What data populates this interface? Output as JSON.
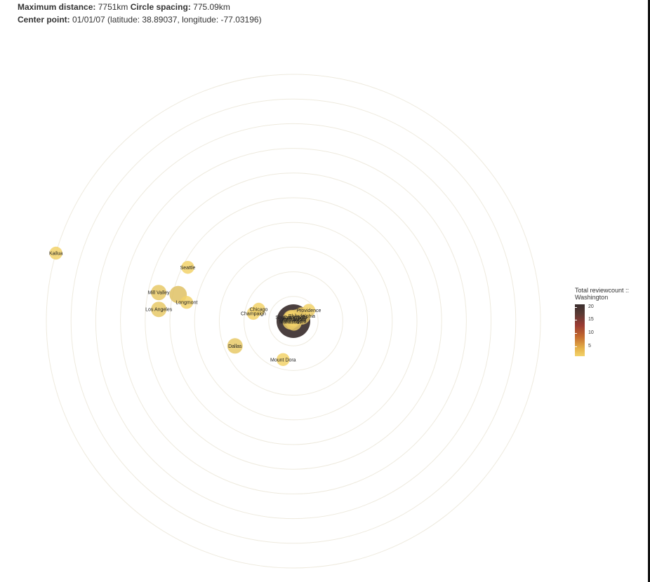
{
  "header": {
    "max_distance_label": "Maximum distance:",
    "max_distance_value": "7751km",
    "spacing_label": "Circle spacing:",
    "spacing_value": "775.09km",
    "center_label": "Center point:",
    "center_value": "01/01/07 (latitude: 38.89037, longitude: -77.03196)"
  },
  "chart_data": {
    "type": "scatter",
    "title": "",
    "center": {
      "name": "Washington",
      "latitude": 38.89037,
      "longitude": -77.03196
    },
    "max_distance_km": 7751,
    "circle_spacing_km": 775.09,
    "rings": 10,
    "colors": {
      "low": "#f2d26a",
      "high": "#3b2f2f",
      "ring": "#eeeade"
    },
    "points": [
      {
        "city": "Kailua",
        "distance_km": 7750,
        "bearing_deg": 286,
        "count": 1,
        "label": true
      },
      {
        "city": "Seattle",
        "distance_km": 3720,
        "bearing_deg": 297,
        "count": 1,
        "label": true
      },
      {
        "city": "Mill Valley",
        "distance_km": 4320,
        "bearing_deg": 282,
        "count": 2,
        "label": true
      },
      {
        "city": "",
        "distance_km": 3710,
        "bearing_deg": 283,
        "count": 3,
        "label": false
      },
      {
        "city": "Longmont",
        "distance_km": 3400,
        "bearing_deg": 280,
        "count": 1,
        "label": true
      },
      {
        "city": "Los Angeles",
        "distance_km": 4240,
        "bearing_deg": 275,
        "count": 2,
        "label": true
      },
      {
        "city": "Chicago",
        "distance_km": 1150,
        "bearing_deg": 289,
        "count": 1,
        "label": true
      },
      {
        "city": "Champaign",
        "distance_km": 1280,
        "bearing_deg": 281,
        "count": 1,
        "label": true
      },
      {
        "city": "Dallas",
        "distance_km": 1990,
        "bearing_deg": 247,
        "count": 2,
        "label": true
      },
      {
        "city": "Mount Dora",
        "distance_km": 1250,
        "bearing_deg": 195,
        "count": 1,
        "label": true
      },
      {
        "city": "Shippensburg",
        "distance_km": 150,
        "bearing_deg": 324,
        "count": 1,
        "label": true
      },
      {
        "city": "Providence",
        "distance_km": 590,
        "bearing_deg": 55,
        "count": 1,
        "label": true
      },
      {
        "city": "Philadelphia",
        "distance_km": 310,
        "bearing_deg": 58,
        "count": 3,
        "label": true
      },
      {
        "city": "Catonsville",
        "distance_km": 140,
        "bearing_deg": 30,
        "count": 2,
        "label": true
      },
      {
        "city": "Silver Spring",
        "distance_km": 60,
        "bearing_deg": 330,
        "count": 3,
        "label": true
      },
      {
        "city": "Bethesda",
        "distance_km": 40,
        "bearing_deg": 0,
        "count": 1,
        "label": true
      },
      {
        "city": "Wheaton",
        "distance_km": 80,
        "bearing_deg": 30,
        "count": 1,
        "label": true
      },
      {
        "city": "",
        "distance_km": 100,
        "bearing_deg": 325,
        "count": 3,
        "label": false
      },
      {
        "city": "Washington",
        "distance_km": 0,
        "bearing_deg": 0,
        "count": 20,
        "label": true
      },
      {
        "city": "Manassas",
        "distance_km": 100,
        "bearing_deg": 258,
        "count": 2,
        "label": true
      },
      {
        "city": "",
        "distance_km": 60,
        "bearing_deg": 165,
        "count": 2,
        "label": false
      }
    ]
  },
  "legend": {
    "title_line1": "Total reviewcount ::",
    "title_line2": "Washington",
    "ticks": [
      "20",
      "15",
      "10",
      "5"
    ]
  }
}
